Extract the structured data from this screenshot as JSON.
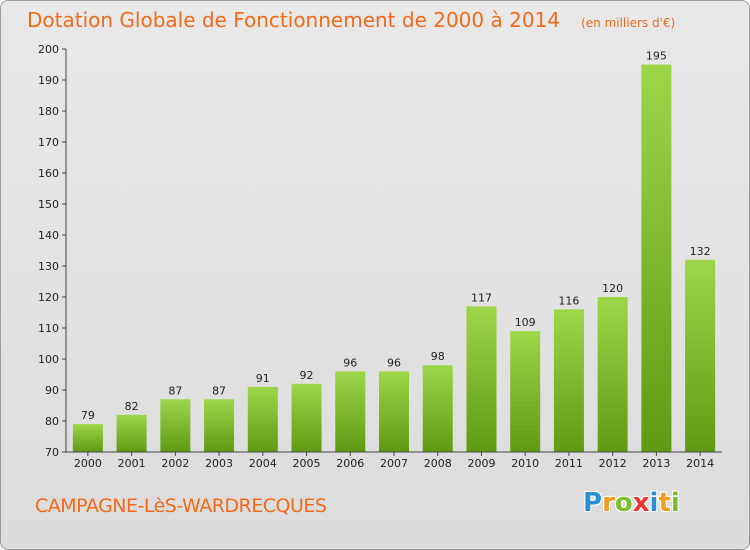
{
  "chart_data": {
    "type": "bar",
    "title": "Dotation Globale de Fonctionnement de 2000 à 2014",
    "unit_note": "(en milliers d'€)",
    "categories": [
      "2000",
      "2001",
      "2002",
      "2003",
      "2004",
      "2005",
      "2006",
      "2007",
      "2008",
      "2009",
      "2010",
      "2011",
      "2012",
      "2013",
      "2014"
    ],
    "values": [
      79,
      82,
      87,
      87,
      91,
      92,
      96,
      96,
      98,
      117,
      109,
      116,
      120,
      195,
      132
    ],
    "ylim": [
      70,
      200
    ],
    "yticks": [
      70,
      80,
      90,
      100,
      110,
      120,
      130,
      140,
      150,
      160,
      170,
      180,
      190,
      200
    ],
    "grid": false,
    "bar_color_light": "#9ed64a",
    "bar_color_dark": "#5f9a12"
  },
  "commune": "CAMPAGNE-LèS-WARDRECQUES",
  "logo": {
    "letters": [
      "P",
      "r",
      "o",
      "x",
      "i",
      "t",
      "i"
    ],
    "colors": [
      "#2c8fd6",
      "#f29c1f",
      "#7cbe2a",
      "#e8352e",
      "#2c8fd6",
      "#f29c1f",
      "#7cbe2a"
    ]
  },
  "colors": {
    "accent": "#f06a1a",
    "frame_border": "#9a9a9a"
  }
}
